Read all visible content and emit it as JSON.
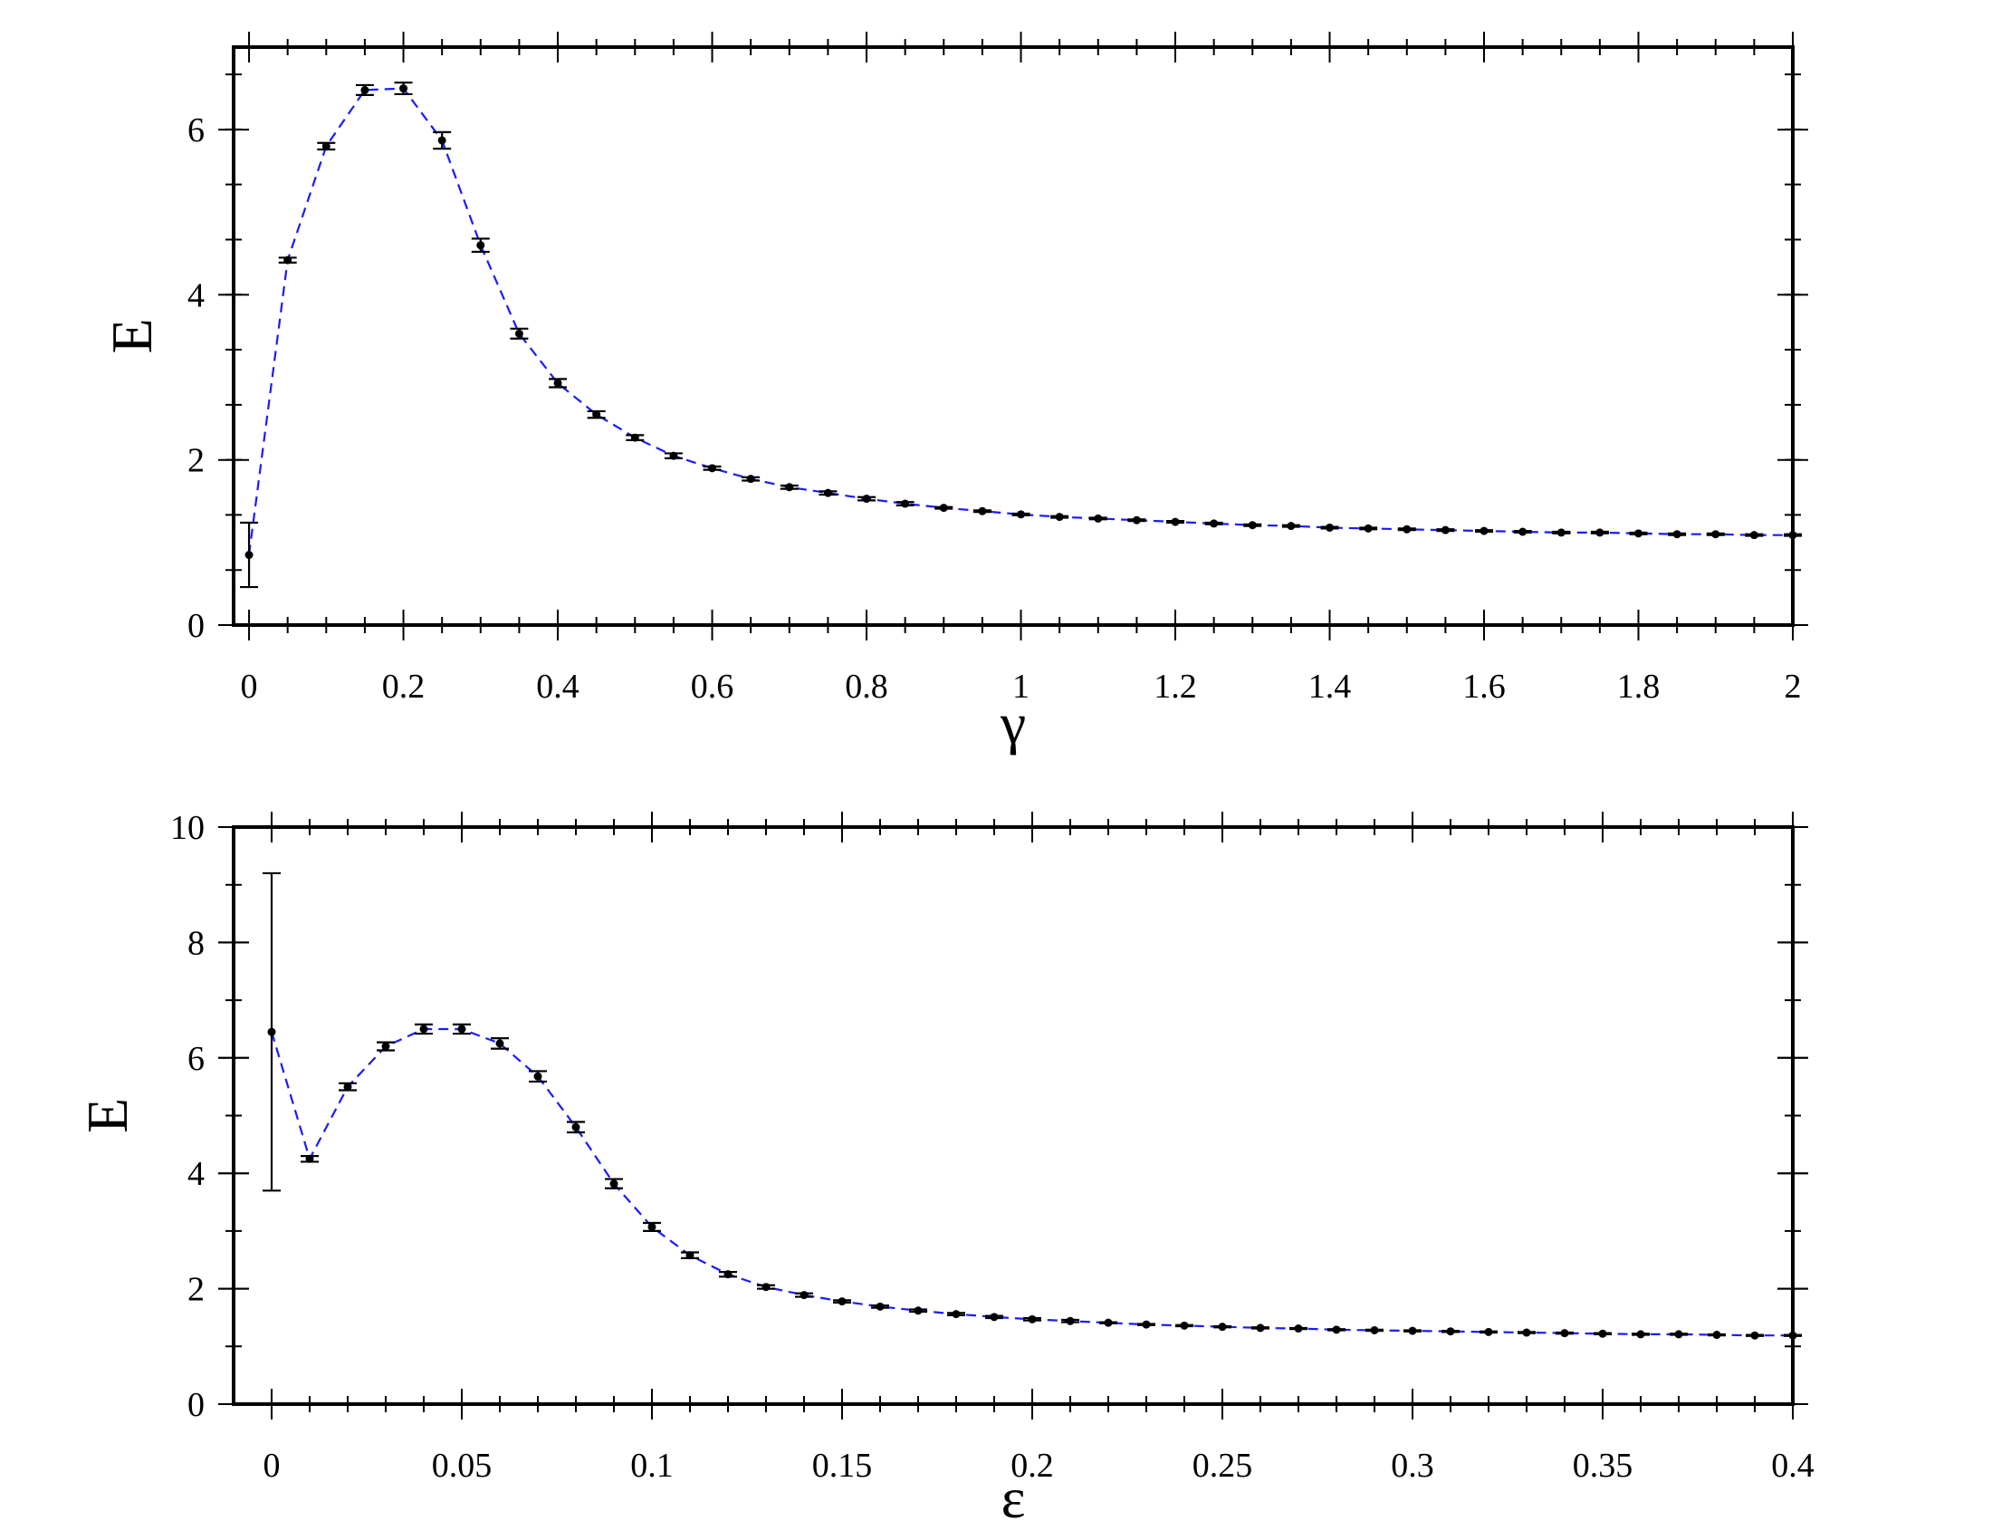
{
  "chart_data": [
    {
      "type": "scatter",
      "xlabel": "γ",
      "ylabel": "E",
      "xlim": [
        -0.02,
        2.0
      ],
      "ylim": [
        0,
        7
      ],
      "xticks": [
        0,
        0.2,
        0.4,
        0.6,
        0.8,
        1,
        1.2,
        1.4,
        1.6,
        1.8,
        2
      ],
      "xtick_labels": [
        "0",
        "0.2",
        "0.4",
        "0.6",
        "0.8",
        "1",
        "1.2",
        "1.4",
        "1.6",
        "1.8",
        "2"
      ],
      "x_minor_step": 0.05,
      "yticks": [
        0,
        2,
        4,
        6
      ],
      "ytick_labels": [
        "0",
        "2",
        "4",
        "6"
      ],
      "y_minor_step": 0.667,
      "grid": false,
      "line_style": "dashed",
      "line_color": "#1a1aff",
      "marker_color": "#000000",
      "series": [
        {
          "x": [
            0,
            0.05,
            0.1,
            0.15,
            0.2,
            0.25,
            0.3,
            0.35,
            0.4,
            0.45,
            0.5,
            0.55,
            0.6,
            0.65,
            0.7,
            0.75,
            0.8,
            0.85,
            0.9,
            0.95,
            1.0,
            1.05,
            1.1,
            1.15,
            1.2,
            1.25,
            1.3,
            1.35,
            1.4,
            1.45,
            1.5,
            1.55,
            1.6,
            1.65,
            1.7,
            1.75,
            1.8,
            1.85,
            1.9,
            1.95,
            2.0
          ],
          "y": [
            0.85,
            4.42,
            5.8,
            6.48,
            6.5,
            5.87,
            4.6,
            3.53,
            2.93,
            2.55,
            2.27,
            2.05,
            1.9,
            1.77,
            1.67,
            1.6,
            1.53,
            1.47,
            1.42,
            1.38,
            1.34,
            1.31,
            1.29,
            1.27,
            1.25,
            1.23,
            1.21,
            1.2,
            1.18,
            1.17,
            1.16,
            1.15,
            1.14,
            1.13,
            1.12,
            1.12,
            1.11,
            1.1,
            1.1,
            1.09,
            1.09
          ],
          "yerr": [
            0.39,
            0.03,
            0.04,
            0.06,
            0.07,
            0.1,
            0.08,
            0.06,
            0.05,
            0.04,
            0.03,
            0.03,
            0.02,
            0.02,
            0.02,
            0.02,
            0.02,
            0.02,
            0.01,
            0.01,
            0.01,
            0.01,
            0.01,
            0.01,
            0.01,
            0.01,
            0.01,
            0.01,
            0.01,
            0.01,
            0.01,
            0.01,
            0.01,
            0.01,
            0.01,
            0.01,
            0.01,
            0.01,
            0.01,
            0.01,
            0.01
          ]
        }
      ]
    },
    {
      "type": "scatter",
      "xlabel": "ε",
      "ylabel": "E",
      "xlim": [
        -0.01,
        0.4
      ],
      "ylim": [
        0,
        10
      ],
      "xticks": [
        0,
        0.05,
        0.1,
        0.15,
        0.2,
        0.25,
        0.3,
        0.35,
        0.4
      ],
      "xtick_labels": [
        "0",
        "0.05",
        "0.1",
        "0.15",
        "0.2",
        "0.25",
        "0.3",
        "0.35",
        "0.4"
      ],
      "x_minor_step": 0.01,
      "yticks": [
        0,
        2,
        4,
        6,
        8,
        10
      ],
      "ytick_labels": [
        "0",
        "2",
        "4",
        "6",
        "8",
        "10"
      ],
      "y_minor_step": 1,
      "grid": false,
      "line_style": "dashed",
      "line_color": "#1a1aff",
      "marker_color": "#000000",
      "series": [
        {
          "x": [
            0,
            0.01,
            0.02,
            0.03,
            0.04,
            0.05,
            0.06,
            0.07,
            0.08,
            0.09,
            0.1,
            0.11,
            0.12,
            0.13,
            0.14,
            0.15,
            0.16,
            0.17,
            0.18,
            0.19,
            0.2,
            0.21,
            0.22,
            0.23,
            0.24,
            0.25,
            0.26,
            0.27,
            0.28,
            0.29,
            0.3,
            0.31,
            0.32,
            0.33,
            0.34,
            0.35,
            0.36,
            0.37,
            0.38,
            0.39,
            0.4
          ],
          "y": [
            6.45,
            4.25,
            5.5,
            6.2,
            6.5,
            6.5,
            6.25,
            5.68,
            4.8,
            3.82,
            3.07,
            2.58,
            2.25,
            2.03,
            1.89,
            1.78,
            1.69,
            1.62,
            1.56,
            1.51,
            1.47,
            1.44,
            1.41,
            1.38,
            1.36,
            1.34,
            1.32,
            1.31,
            1.29,
            1.28,
            1.27,
            1.26,
            1.25,
            1.24,
            1.23,
            1.22,
            1.21,
            1.21,
            1.2,
            1.19,
            1.19
          ],
          "yerr": [
            2.75,
            0.05,
            0.06,
            0.07,
            0.08,
            0.08,
            0.09,
            0.09,
            0.09,
            0.08,
            0.07,
            0.05,
            0.04,
            0.03,
            0.03,
            0.02,
            0.02,
            0.02,
            0.02,
            0.02,
            0.02,
            0.02,
            0.01,
            0.01,
            0.01,
            0.01,
            0.01,
            0.01,
            0.01,
            0.01,
            0.01,
            0.01,
            0.01,
            0.01,
            0.01,
            0.01,
            0.01,
            0.01,
            0.01,
            0.01,
            0.01
          ]
        }
      ]
    }
  ]
}
